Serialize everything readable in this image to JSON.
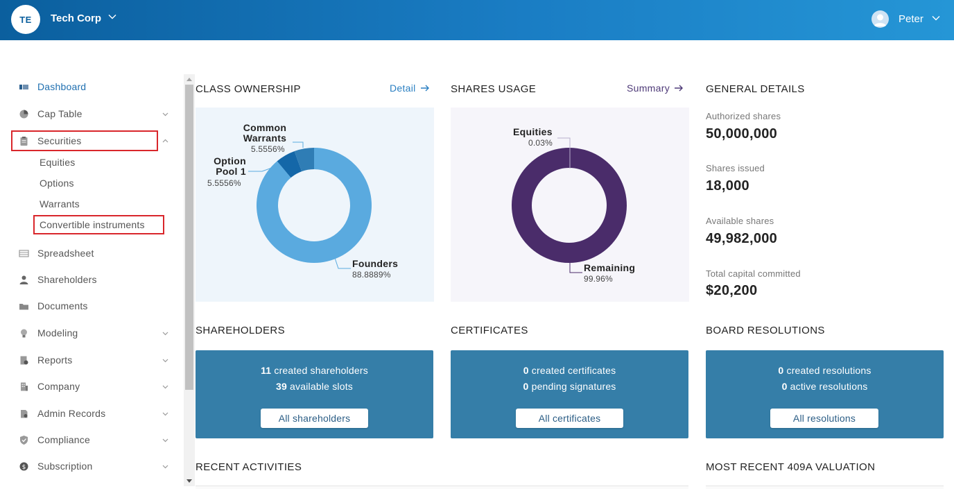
{
  "header": {
    "org_initials": "TE",
    "org_name": "Tech Corp",
    "user_name": "Peter",
    "gradient_colors": [
      "#0b5f9e",
      "#2596d6"
    ]
  },
  "sidebar": {
    "items": [
      {
        "label": "Dashboard",
        "icon": "dashboard-icon",
        "active": true
      },
      {
        "label": "Cap Table",
        "icon": "pie-chart-icon",
        "chevron": "down"
      },
      {
        "label": "Securities",
        "icon": "clipboard-icon",
        "chevron": "up"
      },
      {
        "label": "Spreadsheet",
        "icon": "table-icon"
      },
      {
        "label": "Shareholders",
        "icon": "person-icon"
      },
      {
        "label": "Documents",
        "icon": "folder-icon"
      },
      {
        "label": "Modeling",
        "icon": "lightbulb-icon",
        "chevron": "down"
      },
      {
        "label": "Reports",
        "icon": "report-icon",
        "chevron": "down"
      },
      {
        "label": "Company",
        "icon": "building-icon",
        "chevron": "down"
      },
      {
        "label": "Admin Records",
        "icon": "admin-icon",
        "chevron": "down"
      },
      {
        "label": "Compliance",
        "icon": "shield-check-icon",
        "chevron": "down"
      },
      {
        "label": "Subscription",
        "icon": "dollar-icon",
        "chevron": "down"
      }
    ],
    "securities_sub": [
      "Equities",
      "Options",
      "Warrants",
      "Convertible instruments"
    ]
  },
  "class_ownership": {
    "title": "CLASS OWNERSHIP",
    "link": "Detail",
    "panel_color": "#eef5fb"
  },
  "shares_usage": {
    "title": "SHARES USAGE",
    "link": "Summary",
    "panel_color": "#f6f5fa"
  },
  "chart_data": [
    {
      "type": "pie",
      "title": "CLASS OWNERSHIP",
      "slices": [
        {
          "label": "Founders",
          "value": 88.8889,
          "display": "88.8889%",
          "color": "#5aaadf"
        },
        {
          "label": "Option Pool 1",
          "value": 5.5556,
          "display": "5.5556%",
          "color": "#1467a8"
        },
        {
          "label": "Common Warrants",
          "value": 5.5556,
          "display": "5.5556%",
          "color": "#2f7db5"
        }
      ]
    },
    {
      "type": "pie",
      "title": "SHARES USAGE",
      "slices": [
        {
          "label": "Equities",
          "value": 0.03,
          "display": "0.03%",
          "color": "#7a67a8"
        },
        {
          "label": "Remaining",
          "value": 99.96,
          "display": "99.96%",
          "color": "#4a2c6a"
        }
      ]
    }
  ],
  "general_details": {
    "title": "GENERAL DETAILS",
    "items": [
      {
        "label": "Authorized shares",
        "value": "50,000,000"
      },
      {
        "label": "Shares issued",
        "value": "18,000"
      },
      {
        "label": "Available shares",
        "value": "49,982,000"
      },
      {
        "label": "Total capital committed",
        "value": "$20,200"
      }
    ]
  },
  "cards": {
    "card_color": "#357ea8",
    "shareholders": {
      "title": "SHAREHOLDERS",
      "n1": "11",
      "t1": " created shareholders",
      "n2": "39",
      "t2": " available slots",
      "button": "All shareholders"
    },
    "certificates": {
      "title": "CERTIFICATES",
      "n1": "0",
      "t1": " created certificates",
      "n2": "0",
      "t2": " pending signatures",
      "button": "All certificates"
    },
    "resolutions": {
      "title": "BOARD RESOLUTIONS",
      "n1": "0",
      "t1": " created resolutions",
      "n2": "0",
      "t2": " active resolutions",
      "button": "All resolutions"
    }
  },
  "recent_activities": {
    "title": "RECENT ACTIVITIES"
  },
  "valuation": {
    "title": "MOST RECENT 409A VALUATION"
  }
}
